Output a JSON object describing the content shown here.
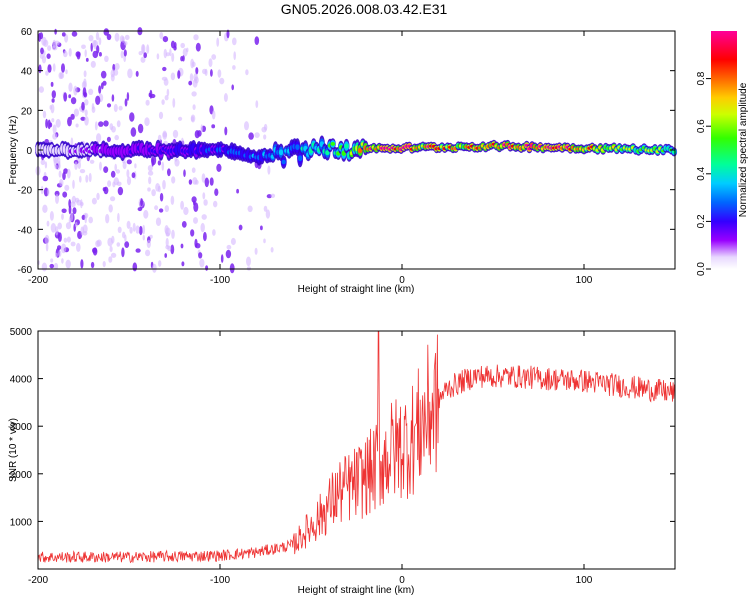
{
  "title": "GN05.2026.008.03.42.E31",
  "chart_data": [
    {
      "type": "heatmap",
      "xlabel": "Height of straight line (km)",
      "ylabel": "Frequency (Hz)",
      "xlim": [
        -200,
        150
      ],
      "ylim": [
        -60,
        60
      ],
      "xticks": [
        -200,
        -100,
        0,
        100
      ],
      "yticks": [
        60,
        40,
        20,
        0,
        -20,
        -40,
        -60
      ],
      "colorbar": {
        "label": "Normalized spectral amplitude",
        "range": [
          0.0,
          1.0
        ],
        "ticks": [
          "0.0",
          "0.2",
          "0.4",
          "0.6",
          "0.8"
        ]
      },
      "band": {
        "center_freq_profile": [
          {
            "x": -200,
            "f": 0
          },
          {
            "x": -120,
            "f": 0
          },
          {
            "x": -100,
            "f": 0
          },
          {
            "x": -80,
            "f": -3
          },
          {
            "x": -60,
            "f": -2
          },
          {
            "x": -45,
            "f": 4
          },
          {
            "x": -35,
            "f": 0
          },
          {
            "x": -25,
            "f": 1
          },
          {
            "x": 0,
            "f": 1
          },
          {
            "x": 50,
            "f": 2
          },
          {
            "x": 100,
            "f": 1
          },
          {
            "x": 150,
            "f": 0
          }
        ],
        "amplitude_profile": [
          {
            "x": -200,
            "a": 0.02
          },
          {
            "x": -100,
            "a": 0.2
          },
          {
            "x": -60,
            "a": 0.3
          },
          {
            "x": -30,
            "a": 0.5
          },
          {
            "x": -15,
            "a": 0.85
          },
          {
            "x": 0,
            "a": 0.9
          },
          {
            "x": 30,
            "a": 0.7
          },
          {
            "x": 80,
            "a": 0.95
          },
          {
            "x": 120,
            "a": 0.6
          },
          {
            "x": 150,
            "a": 0.5
          }
        ]
      },
      "noise_region": {
        "x_range": [
          -200,
          -70
        ],
        "amplitude": 0.03
      }
    },
    {
      "type": "line",
      "xlabel": "Height of straight line (km)",
      "ylabel": "SNR (10 * v/v)",
      "xlim": [
        -200,
        150
      ],
      "ylim": [
        0,
        5000
      ],
      "xticks": [
        -200,
        -100,
        0,
        100
      ],
      "yticks": [
        1000,
        2000,
        3000,
        4000,
        5000
      ],
      "series": [
        {
          "name": "SNR",
          "color": "#ee3333",
          "envelope": [
            {
              "x": -200,
              "y": 250
            },
            {
              "x": -150,
              "y": 250
            },
            {
              "x": -100,
              "y": 280
            },
            {
              "x": -80,
              "y": 350
            },
            {
              "x": -60,
              "y": 500
            },
            {
              "x": -45,
              "y": 1100
            },
            {
              "x": -35,
              "y": 1600
            },
            {
              "x": -25,
              "y": 1800
            },
            {
              "x": -15,
              "y": 2100
            },
            {
              "x": -5,
              "y": 2500
            },
            {
              "x": 5,
              "y": 2700
            },
            {
              "x": 15,
              "y": 3300
            },
            {
              "x": 25,
              "y": 3800
            },
            {
              "x": 40,
              "y": 4050
            },
            {
              "x": 60,
              "y": 4050
            },
            {
              "x": 80,
              "y": 4000
            },
            {
              "x": 100,
              "y": 3950
            },
            {
              "x": 120,
              "y": 3850
            },
            {
              "x": 150,
              "y": 3700
            }
          ],
          "peak": {
            "x": -13,
            "y": 5000
          }
        }
      ]
    }
  ]
}
